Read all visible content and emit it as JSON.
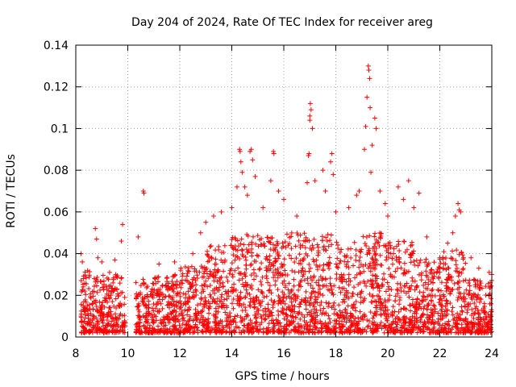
{
  "chart_data": {
    "type": "scatter",
    "title": "Day 204 of 2024, Rate Of TEC Index for receiver areg",
    "xlabel": "GPS time / hours",
    "ylabel": "ROTI / TECUs",
    "xlim": [
      8,
      24
    ],
    "ylim": [
      0,
      0.14
    ],
    "x_ticks": [
      8,
      10,
      12,
      14,
      16,
      18,
      20,
      22,
      24
    ],
    "x_tick_labels": [
      "8",
      "10",
      "12",
      "14",
      "16",
      "18",
      "20",
      "22",
      "24"
    ],
    "y_ticks": [
      0,
      0.02,
      0.04,
      0.06,
      0.08,
      0.1,
      0.12,
      0.14
    ],
    "y_tick_labels": [
      "0",
      "0.02",
      "0.04",
      "0.06",
      "0.08",
      "0.1",
      "0.12",
      "0.14"
    ],
    "grid": true,
    "marker": "+",
    "color": "#ff0000",
    "series": [
      {
        "name": "ROTI",
        "points": [
          [
            8.2,
            0.04
          ],
          [
            8.25,
            0.036
          ],
          [
            8.3,
            0.028
          ],
          [
            8.35,
            0.022
          ],
          [
            8.75,
            0.052
          ],
          [
            8.8,
            0.047
          ],
          [
            8.85,
            0.038
          ],
          [
            9.0,
            0.036
          ],
          [
            9.3,
            0.031
          ],
          [
            9.5,
            0.037
          ],
          [
            9.75,
            0.046
          ],
          [
            9.8,
            0.054
          ],
          [
            10.4,
            0.048
          ],
          [
            10.6,
            0.07
          ],
          [
            10.62,
            0.069
          ],
          [
            11.2,
            0.035
          ],
          [
            11.8,
            0.036
          ],
          [
            12.5,
            0.04
          ],
          [
            12.8,
            0.05
          ],
          [
            13.0,
            0.055
          ],
          [
            13.3,
            0.058
          ],
          [
            13.6,
            0.06
          ],
          [
            14.0,
            0.062
          ],
          [
            14.2,
            0.072
          ],
          [
            14.3,
            0.09
          ],
          [
            14.32,
            0.089
          ],
          [
            14.35,
            0.084
          ],
          [
            14.4,
            0.079
          ],
          [
            14.5,
            0.072
          ],
          [
            14.6,
            0.068
          ],
          [
            14.7,
            0.089
          ],
          [
            14.75,
            0.09
          ],
          [
            14.8,
            0.085
          ],
          [
            14.9,
            0.077
          ],
          [
            15.2,
            0.062
          ],
          [
            15.5,
            0.075
          ],
          [
            15.6,
            0.089
          ],
          [
            15.62,
            0.088
          ],
          [
            15.8,
            0.07
          ],
          [
            16.0,
            0.066
          ],
          [
            16.5,
            0.058
          ],
          [
            16.9,
            0.074
          ],
          [
            16.95,
            0.087
          ],
          [
            16.97,
            0.088
          ],
          [
            17.0,
            0.104
          ],
          [
            17.0,
            0.106
          ],
          [
            17.02,
            0.112
          ],
          [
            17.05,
            0.109
          ],
          [
            17.1,
            0.1
          ],
          [
            17.2,
            0.075
          ],
          [
            17.5,
            0.08
          ],
          [
            17.6,
            0.07
          ],
          [
            17.8,
            0.084
          ],
          [
            17.85,
            0.088
          ],
          [
            17.9,
            0.078
          ],
          [
            18.0,
            0.06
          ],
          [
            18.5,
            0.062
          ],
          [
            18.8,
            0.068
          ],
          [
            18.9,
            0.07
          ],
          [
            19.1,
            0.09
          ],
          [
            19.15,
            0.101
          ],
          [
            19.2,
            0.115
          ],
          [
            19.25,
            0.13
          ],
          [
            19.27,
            0.128
          ],
          [
            19.3,
            0.124
          ],
          [
            19.32,
            0.11
          ],
          [
            19.35,
            0.079
          ],
          [
            19.4,
            0.092
          ],
          [
            19.5,
            0.105
          ],
          [
            19.55,
            0.1
          ],
          [
            19.7,
            0.07
          ],
          [
            19.9,
            0.064
          ],
          [
            20.0,
            0.058
          ],
          [
            20.4,
            0.072
          ],
          [
            20.6,
            0.066
          ],
          [
            20.8,
            0.075
          ],
          [
            21.0,
            0.062
          ],
          [
            21.2,
            0.069
          ],
          [
            21.5,
            0.048
          ],
          [
            22.0,
            0.038
          ],
          [
            22.3,
            0.045
          ],
          [
            22.5,
            0.05
          ],
          [
            22.6,
            0.058
          ],
          [
            22.7,
            0.064
          ],
          [
            22.75,
            0.061
          ],
          [
            22.8,
            0.06
          ],
          [
            23.2,
            0.038
          ],
          [
            23.5,
            0.033
          ],
          [
            23.9,
            0.031
          ],
          [
            24.0,
            0.03
          ]
        ]
      }
    ],
    "dense_band": [
      [
        8.2,
        8.9,
        0.032
      ],
      [
        8.9,
        9.9,
        0.03
      ],
      [
        10.3,
        11.0,
        0.028
      ],
      [
        11.0,
        12.0,
        0.03
      ],
      [
        12.0,
        13.0,
        0.034
      ],
      [
        13.0,
        14.0,
        0.044
      ],
      [
        14.0,
        15.0,
        0.05
      ],
      [
        15.0,
        16.0,
        0.048
      ],
      [
        16.0,
        17.0,
        0.05
      ],
      [
        17.0,
        18.0,
        0.05
      ],
      [
        18.0,
        19.0,
        0.046
      ],
      [
        19.0,
        20.0,
        0.05
      ],
      [
        20.0,
        21.0,
        0.046
      ],
      [
        21.0,
        22.0,
        0.038
      ],
      [
        22.0,
        23.0,
        0.042
      ],
      [
        23.0,
        24.0,
        0.028
      ]
    ]
  }
}
